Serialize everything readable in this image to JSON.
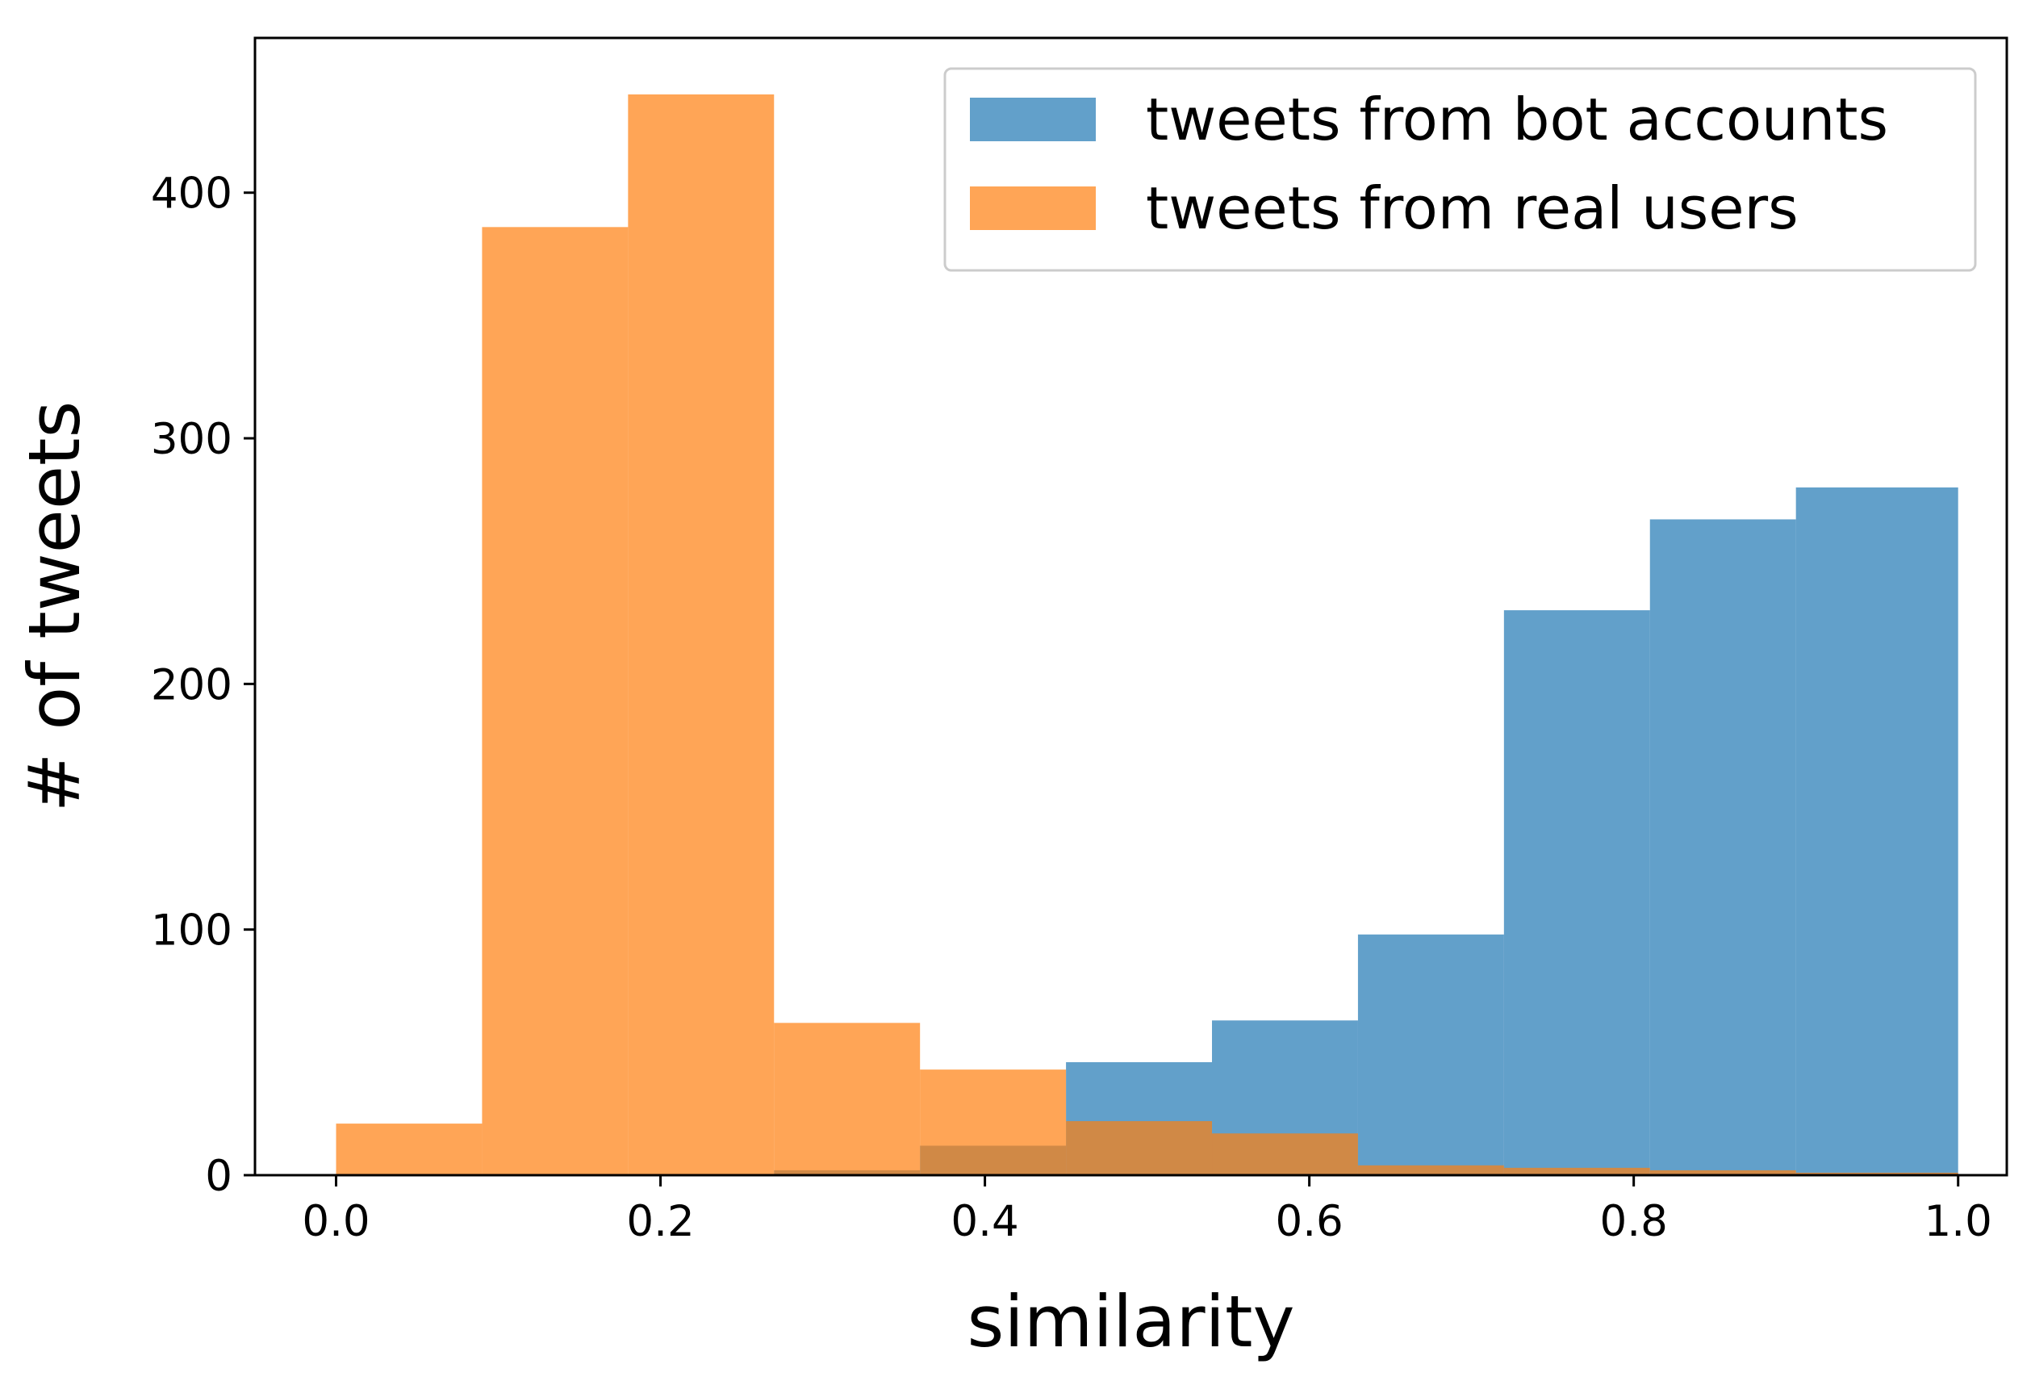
{
  "chart_data": {
    "type": "bar",
    "subtype": "overlapping-histogram",
    "title": "",
    "xlabel": "similarity",
    "ylabel": "# of tweets",
    "xlim": [
      -0.05,
      1.03
    ],
    "ylim": [
      0,
      463
    ],
    "xticks": [
      0.0,
      0.2,
      0.4,
      0.6,
      0.8,
      1.0
    ],
    "xtick_labels": [
      "0.0",
      "0.2",
      "0.4",
      "0.6",
      "0.8",
      "1.0"
    ],
    "yticks": [
      0,
      100,
      200,
      300,
      400
    ],
    "ytick_labels": [
      "0",
      "100",
      "200",
      "300",
      "400"
    ],
    "bin_edges": [
      0.0,
      0.09,
      0.18,
      0.27,
      0.36,
      0.45,
      0.54,
      0.63,
      0.72,
      0.81,
      0.9,
      1.0
    ],
    "grid": false,
    "legend_position": "top-right",
    "series": [
      {
        "name": "tweets from bot accounts",
        "color": "#1f77b4",
        "opacity": 0.7,
        "values": [
          0,
          0,
          0,
          2,
          12,
          46,
          63,
          98,
          230,
          267,
          280
        ]
      },
      {
        "name": "tweets from real users",
        "color": "#ff7f0e",
        "opacity": 0.7,
        "values": [
          21,
          386,
          440,
          62,
          43,
          22,
          17,
          4,
          3,
          2,
          1
        ]
      }
    ]
  }
}
